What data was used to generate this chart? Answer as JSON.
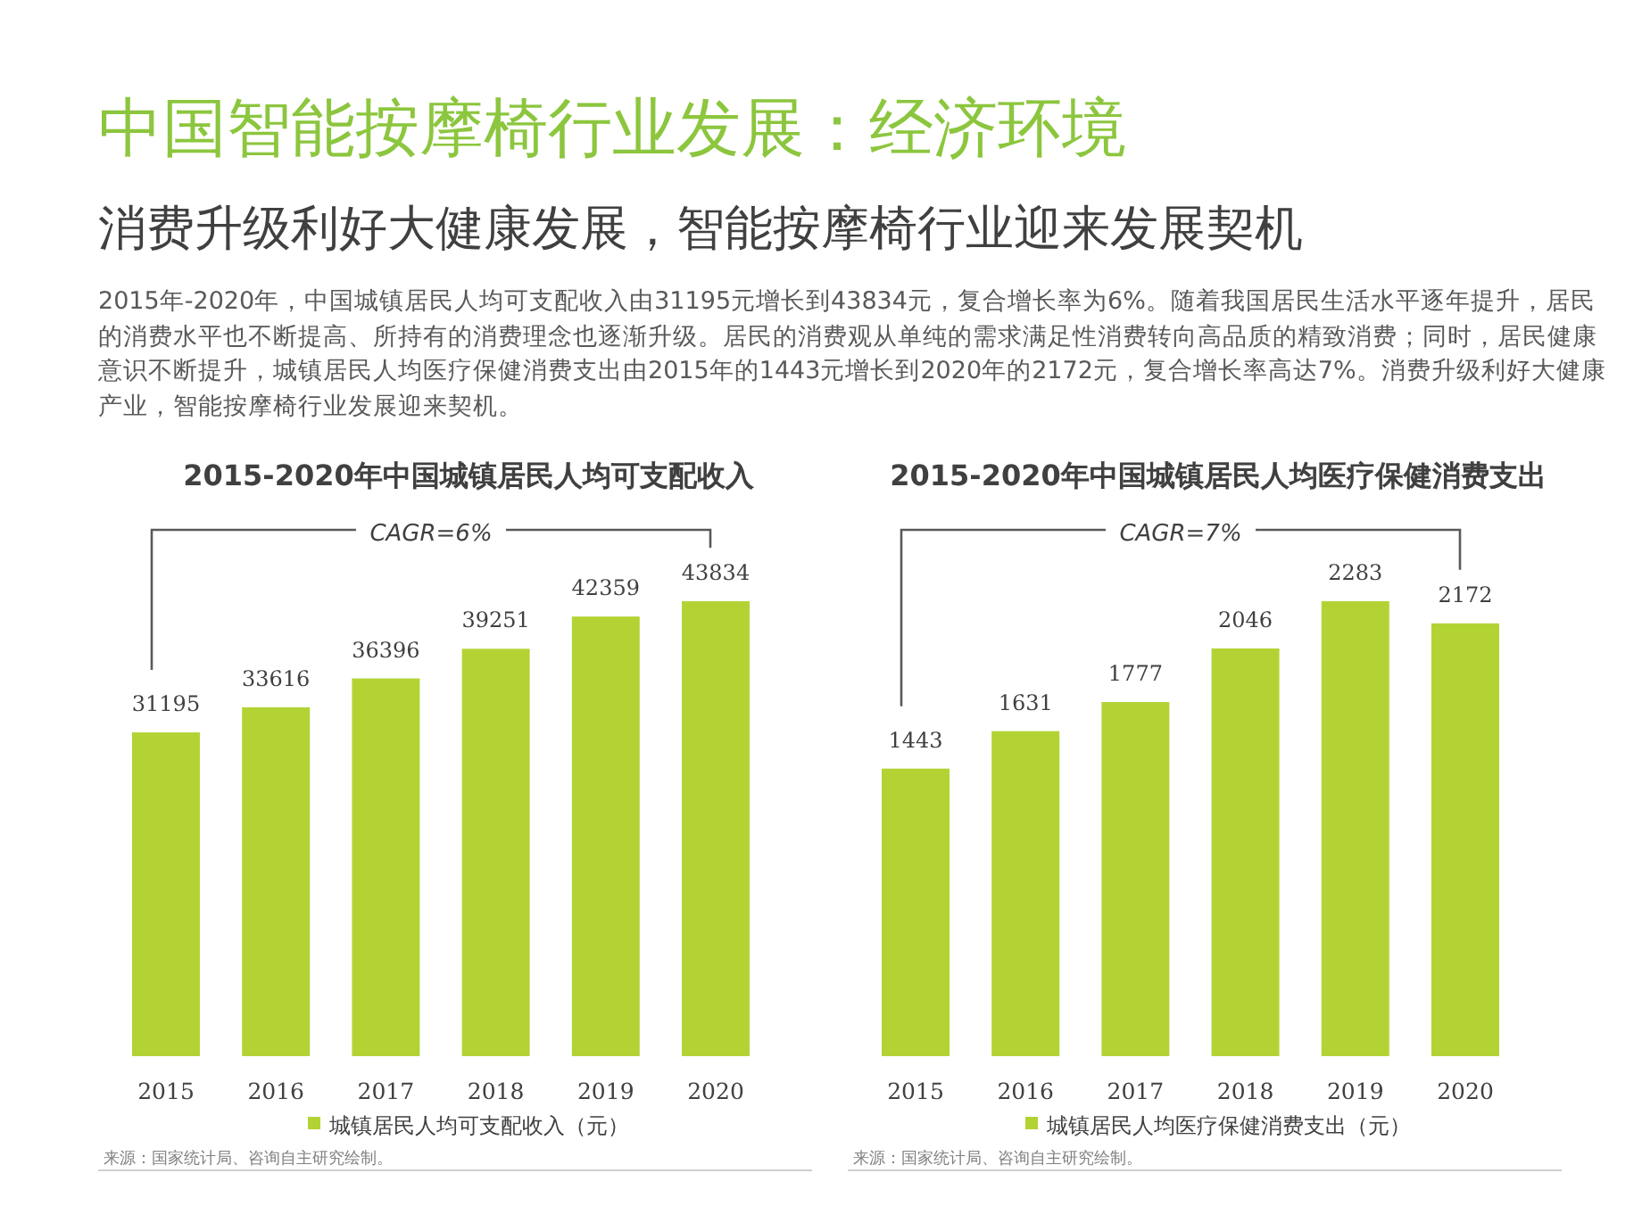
{
  "chart_data": [
    {
      "type": "other",
      "title": "中国智能按摩椅行业发展：经济环境",
      "subtitle": "消费升级利好大健康发展，智能按摩椅行业迎来发展契机",
      "annotations": [
        "2015年-2020年，中国城镇居民人均可支配收入由31195元增长到43834元，复合增长率为6%。随着我国居民生活水平逐年提升，居民的消费水平也不断提高、所持有的消费理念也逐渐升级。居民的消费观从单纯的需求满足性消费转向高品质的精致消费；同时，居民健康意识不断提升，城镇居民人均医疗保健消费支出由2015年的1443元增长到2020年的2172元，复合增长率高达7%。消费升级利好大健康产业，智能按摩椅行业发展迎来契机。"
      ]
    },
    {
      "type": "bar",
      "title": "2015-2020年中国城镇居民人均可支配收入",
      "categories": [
        "2015",
        "2016",
        "2017",
        "2018",
        "2019",
        "2020"
      ],
      "series": [
        {
          "name": "城镇居民人均可支配收入（元）",
          "color": "#b3d335",
          "values": [
            31195,
            33616,
            36396,
            39251,
            42359,
            43834
          ]
        }
      ],
      "data_labels": true,
      "legend": "bottom",
      "annotations": [
        "CAGR=6%",
        "来源：国家统计局、咨询自主研究绘制。"
      ]
    },
    {
      "type": "bar",
      "title": "2015-2020年中国城镇居民人均医疗保健消费支出",
      "categories": [
        "2015",
        "2016",
        "2017",
        "2018",
        "2019",
        "2020"
      ],
      "series": [
        {
          "name": "城镇居民人均医疗保健消费支出（元）",
          "color": "#b3d335",
          "values": [
            1443,
            1631,
            1777,
            2046,
            2283,
            2172
          ]
        }
      ],
      "data_labels": true,
      "legend": "bottom",
      "annotations": [
        "CAGR=7%",
        "来源：国家统计局、咨询自主研究绘制。"
      ]
    }
  ]
}
